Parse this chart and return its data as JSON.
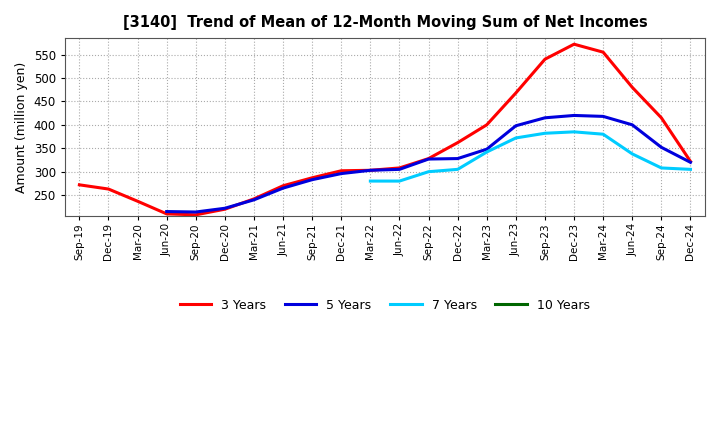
{
  "title": "[3140]  Trend of Mean of 12-Month Moving Sum of Net Incomes",
  "ylabel": "Amount (million yen)",
  "background_color": "#ffffff",
  "plot_bg_color": "#ffffff",
  "grid_color": "#aaaaaa",
  "x_labels": [
    "Sep-19",
    "Dec-19",
    "Mar-20",
    "Jun-20",
    "Sep-20",
    "Dec-20",
    "Mar-21",
    "Jun-21",
    "Sep-21",
    "Dec-21",
    "Mar-22",
    "Jun-22",
    "Sep-22",
    "Dec-22",
    "Mar-23",
    "Jun-23",
    "Sep-23",
    "Dec-23",
    "Mar-24",
    "Jun-24",
    "Sep-24",
    "Dec-24"
  ],
  "ylim": [
    205,
    585
  ],
  "yticks": [
    250,
    300,
    350,
    400,
    450,
    500,
    550
  ],
  "series": [
    {
      "label": "3 Years",
      "color": "#ff0000",
      "data_x": [
        0,
        1,
        2,
        3,
        4,
        5,
        6,
        7,
        8,
        9,
        10,
        11,
        12,
        13,
        14,
        15,
        16,
        17,
        18,
        19,
        20,
        21
      ],
      "data_y": [
        272,
        263,
        237,
        210,
        208,
        220,
        242,
        270,
        287,
        302,
        303,
        308,
        328,
        362,
        400,
        468,
        540,
        572,
        555,
        480,
        415,
        322
      ]
    },
    {
      "label": "5 Years",
      "color": "#0000dd",
      "data_x": [
        3,
        4,
        5,
        6,
        7,
        8,
        9,
        10,
        11,
        12,
        13,
        14,
        15,
        16,
        17,
        18,
        19,
        20,
        21
      ],
      "data_y": [
        215,
        214,
        222,
        240,
        265,
        283,
        296,
        303,
        305,
        327,
        328,
        348,
        398,
        415,
        420,
        418,
        400,
        352,
        320
      ]
    },
    {
      "label": "7 Years",
      "color": "#00ccff",
      "data_x": [
        10,
        11,
        12,
        13,
        14,
        15,
        16,
        17,
        18,
        19,
        20,
        21
      ],
      "data_y": [
        280,
        280,
        300,
        305,
        342,
        372,
        382,
        385,
        380,
        338,
        308,
        305
      ]
    },
    {
      "label": "10 Years",
      "color": "#006600",
      "data_x": [],
      "data_y": []
    }
  ],
  "legend_labels": [
    "3 Years",
    "5 Years",
    "7 Years",
    "10 Years"
  ],
  "legend_colors": [
    "#ff0000",
    "#0000dd",
    "#00ccff",
    "#006600"
  ]
}
